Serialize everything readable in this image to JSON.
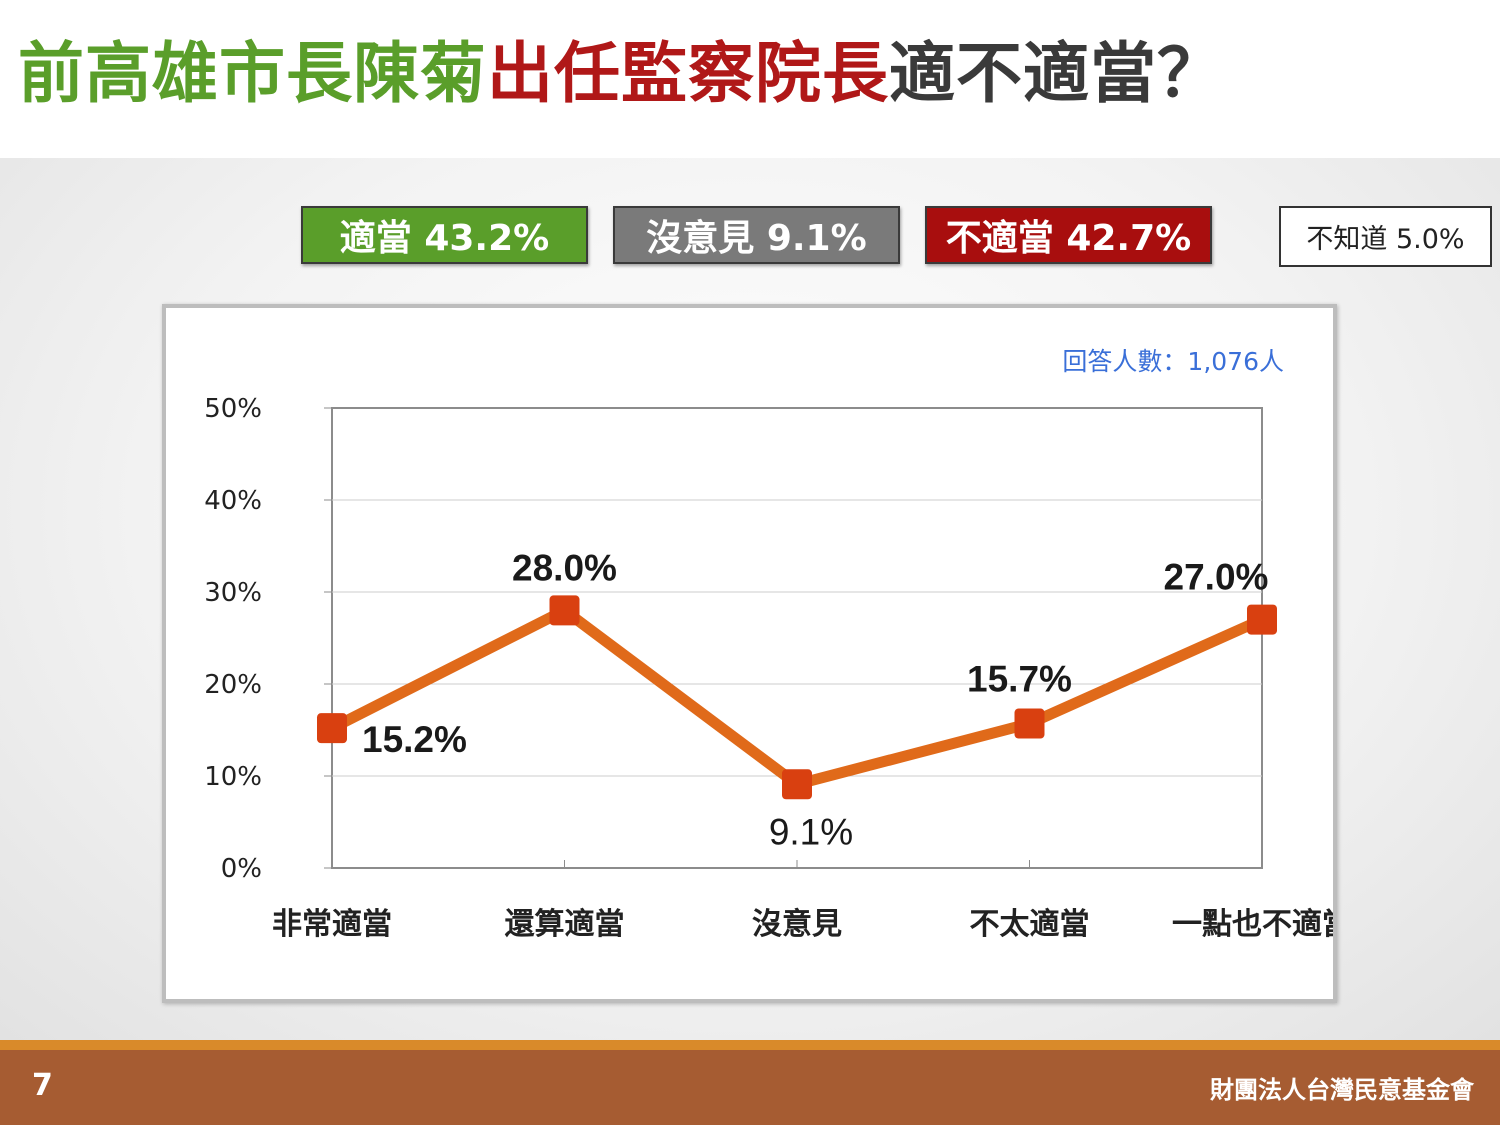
{
  "title": {
    "part1": "前高雄市長陳菊",
    "part2": "出任監察院長",
    "part3": "適不適當？"
  },
  "legend": [
    {
      "label": "適當 43.2%",
      "color": "#5a9e2a"
    },
    {
      "label": "沒意見 9.1%",
      "color": "#7a7a7a"
    },
    {
      "label": "不適當 42.7%",
      "color": "#a80e0e"
    },
    {
      "label": "不知道 5.0%",
      "color": "#ffffff"
    }
  ],
  "respondents": "回答人數：1,076人",
  "chart_data": {
    "type": "line",
    "categories": [
      "非常適當",
      "還算適當",
      "沒意見",
      "不太適當",
      "一點也不適當"
    ],
    "values": [
      15.2,
      28.0,
      9.1,
      15.7,
      27.0
    ],
    "value_labels": [
      "15.2%",
      "28.0%",
      "9.1%",
      "15.7%",
      "27.0%"
    ],
    "ylim": [
      0,
      50
    ],
    "y_ticks": [
      "0%",
      "10%",
      "20%",
      "30%",
      "40%",
      "50%"
    ],
    "xlabel": "",
    "ylabel": "",
    "grid": true,
    "line_color": "#e06a1a",
    "marker_color": "#d94010"
  },
  "footer": {
    "page_number": "7",
    "organization": "財團法人台灣民意基金會"
  }
}
